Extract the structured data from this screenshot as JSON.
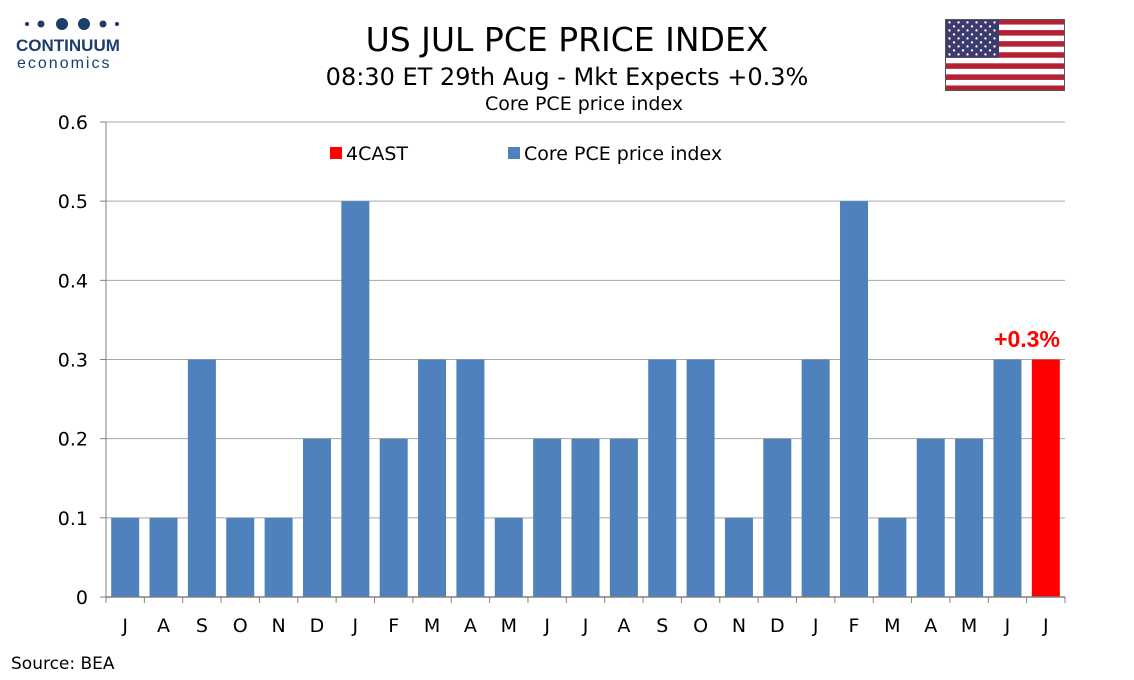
{
  "brand": {
    "name": "CONTINUUM",
    "sub": "economics"
  },
  "header": {
    "title": "US JUL PCE PRICE INDEX",
    "subtitle": "08:30 ET 29th Aug - Mkt Expects +0.3%",
    "chart_label": "Core PCE price index"
  },
  "flag_icon": "us-flag",
  "source": "Source: BEA",
  "colors": {
    "series": "#4f81bd",
    "forecast": "#ff0000",
    "grid": "#a6a6a6"
  },
  "chart_data": {
    "type": "bar",
    "categories": [
      "J",
      "A",
      "S",
      "O",
      "N",
      "D",
      "J",
      "F",
      "M",
      "A",
      "M",
      "J",
      "J",
      "A",
      "S",
      "O",
      "N",
      "D",
      "J",
      "F",
      "M",
      "A",
      "M",
      "J",
      "J"
    ],
    "series": [
      {
        "name": "4CAST",
        "values": [
          null,
          null,
          null,
          null,
          null,
          null,
          null,
          null,
          null,
          null,
          null,
          null,
          null,
          null,
          null,
          null,
          null,
          null,
          null,
          null,
          null,
          null,
          null,
          null,
          0.3
        ]
      },
      {
        "name": "Core PCE price index",
        "values": [
          0.1,
          0.1,
          0.3,
          0.1,
          0.1,
          0.2,
          0.5,
          0.2,
          0.3,
          0.3,
          0.1,
          0.2,
          0.2,
          0.2,
          0.3,
          0.3,
          0.1,
          0.2,
          0.3,
          0.5,
          0.1,
          0.2,
          0.2,
          0.3,
          null
        ]
      }
    ],
    "yticks": [
      "0",
      "0.1",
      "0.2",
      "0.3",
      "0.4",
      "0.5",
      "0.6"
    ],
    "ylim": [
      0,
      0.6
    ],
    "grid": true,
    "legend_position": "top",
    "annotation": "+0.3%"
  }
}
